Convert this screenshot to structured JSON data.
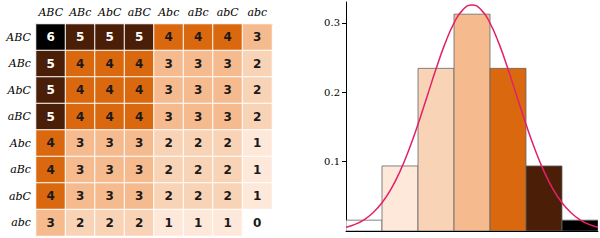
{
  "chart_data": [
    {
      "type": "heatmap",
      "x": [
        "ABC",
        "ABc",
        "AbC",
        "aBC",
        "Abc",
        "aBc",
        "abC",
        "abc"
      ],
      "y": [
        "ABC",
        "ABc",
        "AbC",
        "aBC",
        "Abc",
        "aBc",
        "abC",
        "abc"
      ],
      "cells": [
        [
          6,
          5,
          5,
          5,
          4,
          4,
          4,
          3
        ],
        [
          5,
          4,
          4,
          4,
          3,
          3,
          3,
          2
        ],
        [
          5,
          4,
          4,
          4,
          3,
          3,
          3,
          2
        ],
        [
          5,
          4,
          4,
          4,
          3,
          3,
          3,
          2
        ],
        [
          4,
          3,
          3,
          3,
          2,
          2,
          2,
          1
        ],
        [
          4,
          3,
          3,
          3,
          2,
          2,
          2,
          1
        ],
        [
          4,
          3,
          3,
          3,
          2,
          2,
          2,
          1
        ],
        [
          3,
          2,
          2,
          2,
          1,
          1,
          1,
          0
        ]
      ],
      "colors": [
        "#ffffff",
        "#fde8d9",
        "#f9d3b6",
        "#f5bb8e",
        "#d9680f",
        "#4a1e07",
        "#000000"
      ],
      "data_labels": true
    },
    {
      "type": "histogram",
      "bins": [
        -0.5,
        0.5,
        1.5,
        2.5,
        3.5,
        4.5,
        5.5,
        6.5
      ],
      "counts": [
        0.015625,
        0.09375,
        0.234375,
        0.3125,
        0.234375,
        0.09375,
        0.015625
      ],
      "colors": [
        "#ffffff",
        "#fde8d9",
        "#f9d3b6",
        "#f5bb8e",
        "#d9680f",
        "#4a1e07",
        "#000000"
      ],
      "xlim": [
        -0.5,
        6.5
      ],
      "ylim": [
        0,
        0.33
      ],
      "yticks": [
        0.1,
        0.2,
        0.3
      ],
      "tick_labels": "y",
      "curve": {
        "color": "#e2206c",
        "x": [
          -0.5,
          -0.25,
          0,
          0.25,
          0.5,
          0.75,
          1,
          1.25,
          1.5,
          1.75,
          2,
          2.25,
          2.5,
          2.75,
          3,
          3.25,
          3.5,
          3.75,
          4,
          4.25,
          4.5,
          4.75,
          5,
          5.25,
          5.5,
          5.75,
          6,
          6.25,
          6.5
        ],
        "y": [
          0.0055,
          0.0096,
          0.0162,
          0.0262,
          0.0406,
          0.0603,
          0.0859,
          0.1174,
          0.1538,
          0.1935,
          0.2334,
          0.27,
          0.2997,
          0.319,
          0.3257,
          0.319,
          0.2997,
          0.27,
          0.2334,
          0.1935,
          0.1538,
          0.1174,
          0.0859,
          0.0603,
          0.0406,
          0.0262,
          0.0162,
          0.0096,
          0.0055
        ]
      }
    }
  ]
}
